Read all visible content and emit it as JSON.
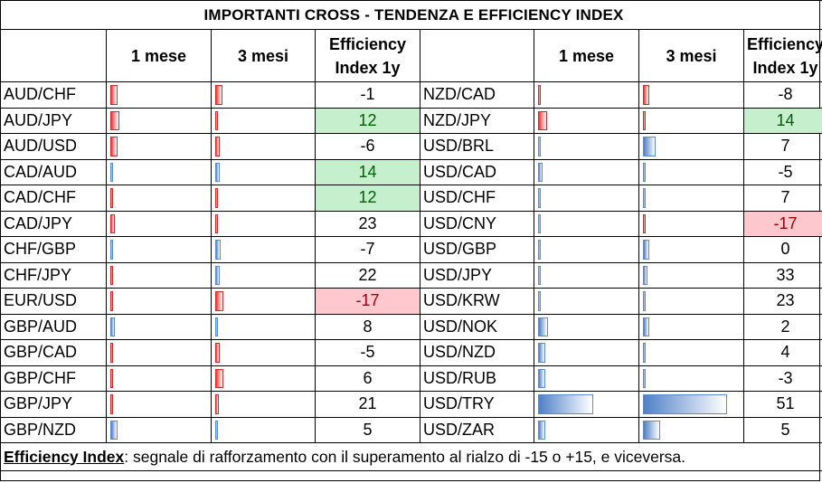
{
  "title": "IMPORTANTI CROSS - TENDENZA E EFFICIENCY INDEX",
  "headers": {
    "one_month": "1 mese",
    "three_months": "3 mesi",
    "ei_line1": "Efficiency",
    "ei_line2": "Index 1y"
  },
  "left": [
    {
      "pair": "AUD/CHF",
      "m1": {
        "dir": "neg",
        "level": 0.07
      },
      "m3": {
        "dir": "neg",
        "level": 0.07
      },
      "ei": "-1",
      "hl": ""
    },
    {
      "pair": "AUD/JPY",
      "m1": {
        "dir": "neg",
        "level": 0.09
      },
      "m3": {
        "dir": "neg",
        "level": 0.01
      },
      "ei": "12",
      "hl": "pos"
    },
    {
      "pair": "AUD/USD",
      "m1": {
        "dir": "neg",
        "level": 0.07
      },
      "m3": {
        "dir": "neg",
        "level": 0.05
      },
      "ei": "-6",
      "hl": ""
    },
    {
      "pair": "CAD/AUD",
      "m1": {
        "dir": "pos",
        "level": 0.02
      },
      "m3": {
        "dir": "pos",
        "level": 0.05
      },
      "ei": "14",
      "hl": "pos"
    },
    {
      "pair": "CAD/CHF",
      "m1": {
        "dir": "neg",
        "level": 0.03
      },
      "m3": {
        "dir": "neg",
        "level": 0.02
      },
      "ei": "12",
      "hl": "pos"
    },
    {
      "pair": "CAD/JPY",
      "m1": {
        "dir": "neg",
        "level": 0.05
      },
      "m3": {
        "dir": "neg",
        "level": 0.03
      },
      "ei": "23",
      "hl": ""
    },
    {
      "pair": "CHF/GBP",
      "m1": {
        "dir": "pos",
        "level": 0.01
      },
      "m3": {
        "dir": "pos",
        "level": 0.06
      },
      "ei": "-7",
      "hl": ""
    },
    {
      "pair": "CHF/JPY",
      "m1": {
        "dir": "neg",
        "level": 0.03
      },
      "m3": {
        "dir": "pos",
        "level": 0.05
      },
      "ei": "22",
      "hl": ""
    },
    {
      "pair": "EUR/USD",
      "m1": {
        "dir": "neg",
        "level": 0.03
      },
      "m3": {
        "dir": "neg",
        "level": 0.08
      },
      "ei": "-17",
      "hl": "neg"
    },
    {
      "pair": "GBP/AUD",
      "m1": {
        "dir": "pos",
        "level": 0.05
      },
      "m3": {
        "dir": "pos",
        "level": 0.01
      },
      "ei": "8",
      "hl": ""
    },
    {
      "pair": "GBP/CAD",
      "m1": {
        "dir": "neg",
        "level": 0.02
      },
      "m3": {
        "dir": "neg",
        "level": 0.05
      },
      "ei": "-5",
      "hl": ""
    },
    {
      "pair": "GBP/CHF",
      "m1": {
        "dir": "neg",
        "level": 0.02
      },
      "m3": {
        "dir": "neg",
        "level": 0.08
      },
      "ei": "6",
      "hl": ""
    },
    {
      "pair": "GBP/JPY",
      "m1": {
        "dir": "neg",
        "level": 0.03
      },
      "m3": {
        "dir": "neg",
        "level": 0.04
      },
      "ei": "21",
      "hl": ""
    },
    {
      "pair": "GBP/NZD",
      "m1": {
        "dir": "pos",
        "level": 0.07
      },
      "m3": {
        "dir": "pos",
        "level": 0.02
      },
      "ei": "5",
      "hl": ""
    }
  ],
  "right": [
    {
      "pair": "NZD/CAD",
      "m1": {
        "dir": "neg",
        "level": 0.03
      },
      "m3": {
        "dir": "neg",
        "level": 0.06
      },
      "ei": "-8",
      "hl": ""
    },
    {
      "pair": "NZD/JPY",
      "m1": {
        "dir": "neg",
        "level": 0.09
      },
      "m3": {
        "dir": "neg",
        "level": 0.03
      },
      "ei": "14",
      "hl": "pos"
    },
    {
      "pair": "USD/BRL",
      "m1": {
        "dir": "pos",
        "level": 0.03
      },
      "m3": {
        "dir": "pos",
        "level": 0.13
      },
      "ei": "7",
      "hl": ""
    },
    {
      "pair": "USD/CAD",
      "m1": {
        "dir": "pos",
        "level": 0.05
      },
      "m3": {
        "dir": "pos",
        "level": 0.02
      },
      "ei": "-5",
      "hl": ""
    },
    {
      "pair": "USD/CHF",
      "m1": {
        "dir": "pos",
        "level": 0.02
      },
      "m3": {
        "dir": "pos",
        "level": 0.02
      },
      "ei": "7",
      "hl": ""
    },
    {
      "pair": "USD/CNY",
      "m1": {
        "dir": "pos",
        "level": 0.01
      },
      "m3": {
        "dir": "neg",
        "level": 0.03
      },
      "ei": "-17",
      "hl": "neg"
    },
    {
      "pair": "USD/GBP",
      "m1": {
        "dir": "pos",
        "level": 0.01
      },
      "m3": {
        "dir": "pos",
        "level": 0.06
      },
      "ei": "0",
      "hl": ""
    },
    {
      "pair": "USD/JPY",
      "m1": {
        "dir": "pos",
        "level": 0.01
      },
      "m3": {
        "dir": "pos",
        "level": 0.05
      },
      "ei": "33",
      "hl": ""
    },
    {
      "pair": "USD/KRW",
      "m1": {
        "dir": "pos",
        "level": 0.01
      },
      "m3": {
        "dir": "pos",
        "level": 0.02
      },
      "ei": "23",
      "hl": ""
    },
    {
      "pair": "USD/NOK",
      "m1": {
        "dir": "pos",
        "level": 0.1
      },
      "m3": {
        "dir": "pos",
        "level": 0.06
      },
      "ei": "2",
      "hl": ""
    },
    {
      "pair": "USD/NZD",
      "m1": {
        "dir": "pos",
        "level": 0.07
      },
      "m3": {
        "dir": "pos",
        "level": 0.03
      },
      "ei": "4",
      "hl": ""
    },
    {
      "pair": "USD/RUB",
      "m1": {
        "dir": "pos",
        "level": 0.07
      },
      "m3": {
        "dir": "pos",
        "level": 0.02
      },
      "ei": "-3",
      "hl": ""
    },
    {
      "pair": "USD/TRY",
      "m1": {
        "dir": "pos",
        "level": 0.56
      },
      "m3": {
        "dir": "pos",
        "level": 0.85
      },
      "ei": "51",
      "hl": ""
    },
    {
      "pair": "USD/ZAR",
      "m1": {
        "dir": "pos",
        "level": 0.07
      },
      "m3": {
        "dir": "pos",
        "level": 0.17
      },
      "ei": "5",
      "hl": ""
    }
  ],
  "bar_colors": {
    "neg": "#e83a3a",
    "pos": "#4f81c7"
  },
  "highlight_colors": {
    "pos_bg": "#c6efce",
    "pos_fg": "#006100",
    "neg_bg": "#ffc7ce",
    "neg_fg": "#9c0006"
  },
  "footnote": {
    "label": "Efficiency Index",
    "text": ": segnale di rafforzamento con il superamento al rialzo di -15 o +15, e viceversa."
  }
}
